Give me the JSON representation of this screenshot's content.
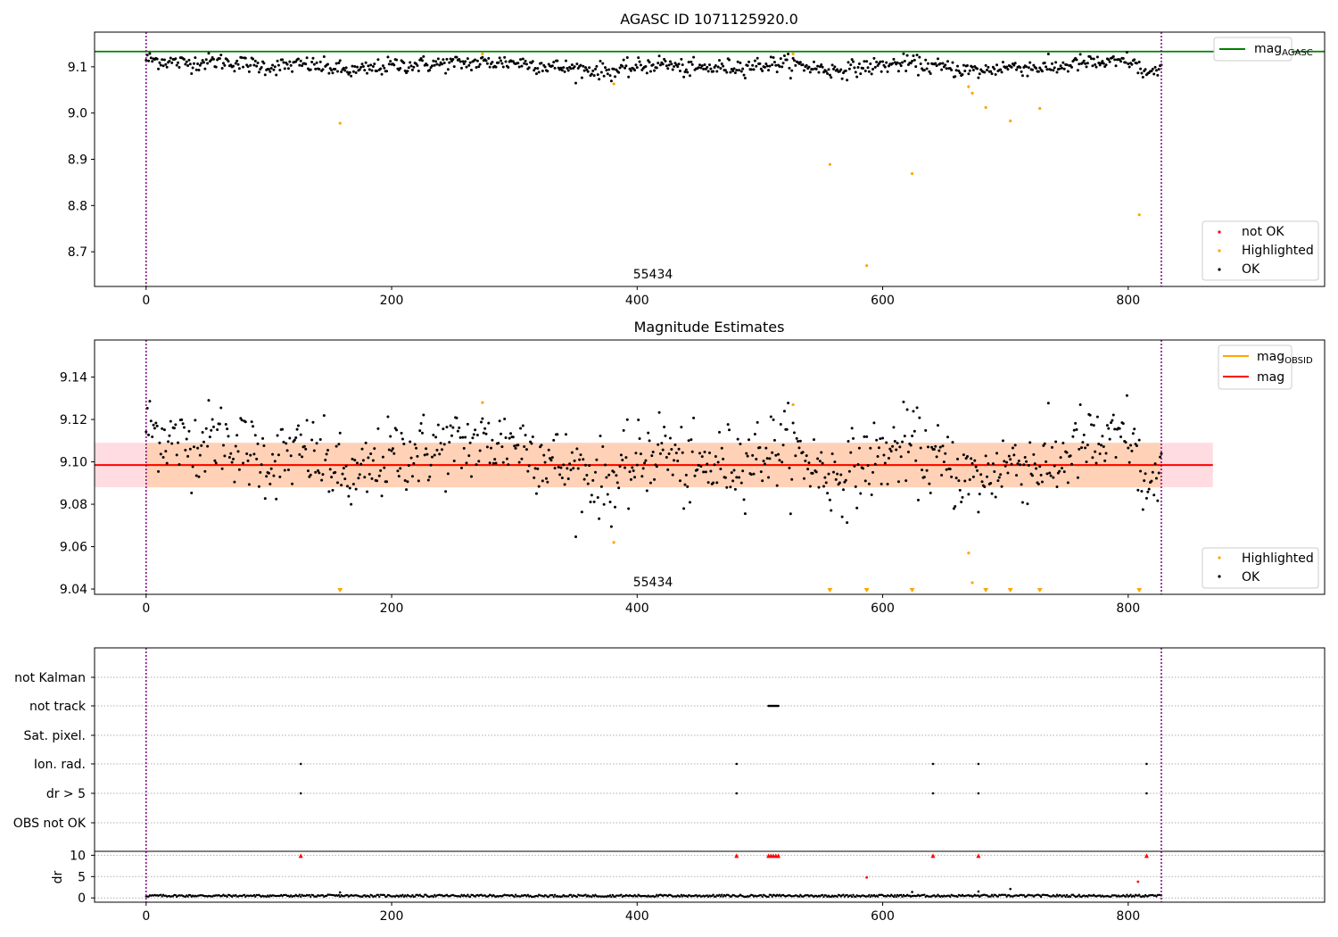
{
  "chart_data": [
    {
      "type": "scatter",
      "title": "AGASC ID 1071125920.0",
      "xlim": [
        -42,
        960
      ],
      "ylim": [
        8.625,
        9.175
      ],
      "xticks": [
        0,
        200,
        400,
        600,
        800
      ],
      "yticks": [
        8.7,
        8.8,
        8.9,
        9.0,
        9.1
      ],
      "ytick_labels": [
        "8.7",
        "8.8",
        "8.9",
        "9.0",
        "9.1"
      ],
      "obsid_label": "55434",
      "obsid_boundaries": [
        0,
        827
      ],
      "agasc_mag": 9.133,
      "legend_line": {
        "base": "mag",
        "sub": "AGASC",
        "color": "#008000"
      },
      "legend_points": [
        {
          "label": "not OK",
          "color": "#ff0000"
        },
        {
          "label": "Highlighted",
          "color": "#ffa500"
        },
        {
          "label": "OK",
          "color": "#000000"
        }
      ],
      "ok_trend": [
        [
          0,
          9.117
        ],
        [
          30,
          9.108
        ],
        [
          60,
          9.112
        ],
        [
          100,
          9.1
        ],
        [
          130,
          9.105
        ],
        [
          170,
          9.09
        ],
        [
          200,
          9.103
        ],
        [
          260,
          9.108
        ],
        [
          300,
          9.11
        ],
        [
          340,
          9.098
        ],
        [
          380,
          9.09
        ],
        [
          420,
          9.108
        ],
        [
          440,
          9.095
        ],
        [
          480,
          9.1
        ],
        [
          520,
          9.108
        ],
        [
          560,
          9.092
        ],
        [
          600,
          9.103
        ],
        [
          620,
          9.108
        ],
        [
          650,
          9.098
        ],
        [
          680,
          9.09
        ],
        [
          700,
          9.1
        ],
        [
          740,
          9.098
        ],
        [
          760,
          9.108
        ],
        [
          790,
          9.108
        ],
        [
          800,
          9.115
        ],
        [
          815,
          9.085
        ],
        [
          827,
          9.09
        ]
      ],
      "ok_scatter": 0.009,
      "ok_count": 827,
      "highlighted": [
        [
          158,
          8.978
        ],
        [
          274,
          9.128
        ],
        [
          381,
          9.063
        ],
        [
          527,
          9.128
        ],
        [
          557,
          8.889
        ],
        [
          587,
          8.67
        ],
        [
          624,
          8.869
        ],
        [
          670,
          9.057
        ],
        [
          673,
          9.043
        ],
        [
          684,
          9.012
        ],
        [
          704,
          8.983
        ],
        [
          728,
          9.01
        ],
        [
          809,
          8.78
        ]
      ]
    },
    {
      "type": "scatter",
      "title": "Magnitude Estimates",
      "xlim": [
        -42,
        960
      ],
      "ylim": [
        9.0375,
        9.1575
      ],
      "xticks": [
        0,
        200,
        400,
        600,
        800
      ],
      "yticks": [
        9.04,
        9.06,
        9.08,
        9.1,
        9.12,
        9.14
      ],
      "ytick_labels": [
        "9.04",
        "9.06",
        "9.08",
        "9.10",
        "9.12",
        "9.14"
      ],
      "obsid_label": "55434",
      "obsid_boundaries": [
        0,
        827
      ],
      "mag": 9.0985,
      "mag_band": [
        9.088,
        9.109
      ],
      "band_end": 869,
      "legend_lines": [
        {
          "base": "mag",
          "sub": "OBSID",
          "color": "#ffa500"
        },
        {
          "base": "mag",
          "sub": "",
          "color": "#ff0000"
        }
      ],
      "legend_points": [
        {
          "label": "Highlighted",
          "color": "#ffa500"
        },
        {
          "label": "OK",
          "color": "#000000"
        }
      ],
      "highlighted": [
        [
          274,
          9.128
        ],
        [
          381,
          9.062
        ],
        [
          527,
          9.127
        ],
        [
          670,
          9.057
        ],
        [
          673,
          9.043
        ]
      ],
      "offscale_markers": [
        158,
        557,
        587,
        624,
        684,
        704,
        728,
        809
      ]
    },
    {
      "type": "scatter",
      "xlim": [
        -42,
        960
      ],
      "xticks": [
        0,
        200,
        400,
        600,
        800
      ],
      "flag_rows": [
        "not Kalman",
        "not track",
        "Sat. pixel.",
        "Ion. rad.",
        "dr > 5",
        "OBS not OK"
      ],
      "flag_points": {
        "not track": [
          507,
          508,
          509,
          510,
          511,
          512,
          513,
          514,
          515
        ],
        "Ion. rad.": [
          126,
          481,
          641,
          678,
          815
        ],
        "dr > 5": [
          126,
          481,
          641,
          678,
          815
        ]
      },
      "dr_ylabel": "dr",
      "dr_yticks": [
        0,
        5,
        10
      ],
      "dr_ylim": [
        -1.0,
        10.5
      ],
      "dr_clip": 10,
      "dr_clipped": [
        126,
        481,
        507,
        509,
        511,
        513,
        515,
        641,
        678,
        815
      ],
      "dr_red_points": [
        [
          587,
          4.8
        ],
        [
          808,
          3.8
        ]
      ],
      "dr_black_points": [
        [
          158,
          1.3
        ],
        [
          624,
          1.4
        ],
        [
          678,
          1.5
        ],
        [
          704,
          2.1
        ]
      ]
    }
  ]
}
